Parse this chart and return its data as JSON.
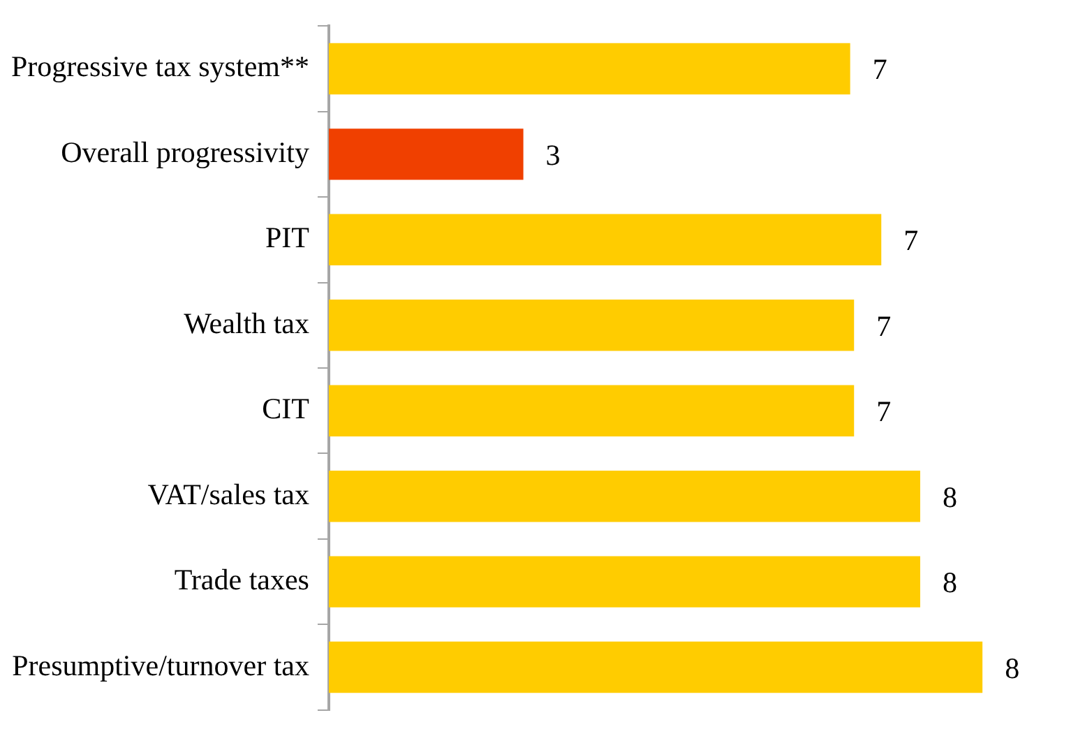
{
  "chart_data": {
    "type": "bar",
    "orientation": "horizontal",
    "categories": [
      "Progressive tax system**",
      "Overall progressivity",
      "PIT",
      "Wealth tax",
      "CIT",
      "VAT/sales tax",
      "Trade taxes",
      "Presumptive/turnover tax"
    ],
    "values": [
      6.7,
      2.5,
      7.1,
      6.75,
      6.75,
      7.6,
      7.6,
      8.4
    ],
    "colors": [
      "#ffcc00",
      "#f04000",
      "#ffcc00",
      "#ffcc00",
      "#ffcc00",
      "#ffcc00",
      "#ffcc00",
      "#ffcc00"
    ],
    "value_labels": [
      "7",
      "3",
      "7",
      "7",
      "7",
      "8",
      "8",
      "8"
    ],
    "tick_labels": "y",
    "grid": false,
    "legend": false
  }
}
